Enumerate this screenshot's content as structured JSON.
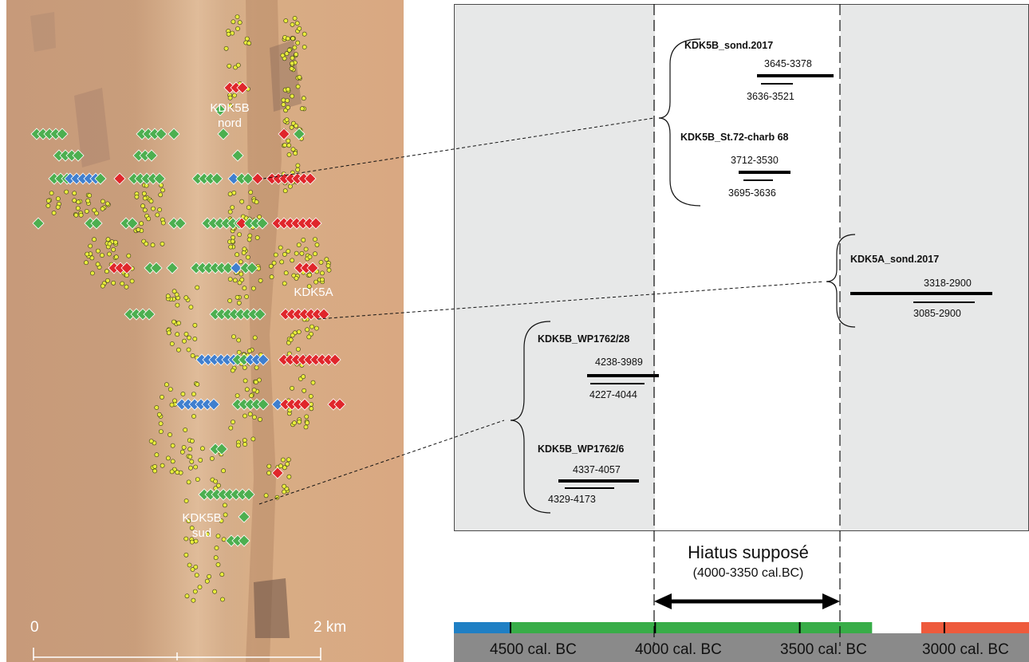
{
  "map": {
    "labels": {
      "north_line1": "KDK5B",
      "north_line2": "nord",
      "kdk5a": "KDK5A",
      "south_line1": "KDK5B",
      "south_line2": "sud"
    },
    "scale": {
      "start": "0",
      "end": "2 km"
    },
    "colors": {
      "green": "#4caf50",
      "blue": "#3f7fcf",
      "red": "#e0262b",
      "yellow": "#e8ec3c"
    }
  },
  "samples": [
    {
      "id": "kdk5b-sond-2017",
      "name": "KDK5B_sond.2017",
      "range_95": "3645-3378",
      "range_68": "3636-3521"
    },
    {
      "id": "kdk5b-st72",
      "name": "KDK5B_St.72-charb 68",
      "range_95": "3712-3530",
      "range_68": "3695-3636"
    },
    {
      "id": "kdk5a-sond-2017",
      "name": "KDK5A_sond.2017",
      "range_95": "3318-2900",
      "range_68": "3085-2900"
    },
    {
      "id": "kdk5b-wp1762-28",
      "name": "KDK5B_WP1762/28",
      "range_95": "4238-3989",
      "range_68": "4227-4044"
    },
    {
      "id": "kdk5b-wp1762-6",
      "name": "KDK5B_WP1762/6",
      "range_95": "4337-4057",
      "range_68": "4329-4173"
    }
  ],
  "hiatus": {
    "title": "Hiatus supposé",
    "subtitle": "(4000-3350 cal.BC)",
    "start": 4000,
    "end": 3350
  },
  "timeline": {
    "ticks": [
      {
        "value": 4500,
        "label": "4500  cal. BC"
      },
      {
        "value": 4000,
        "label": "4000  cal. BC"
      },
      {
        "value": 3500,
        "label": "3500  cal. BC"
      },
      {
        "value": 3000,
        "label": "3000  cal. BC"
      }
    ],
    "segments": [
      {
        "from": 4700,
        "to": 4500,
        "color": "#1f7fc4"
      },
      {
        "from": 4500,
        "to": 3250,
        "color": "#38ad48"
      },
      {
        "from": 3080,
        "to": 2700,
        "color": "#ee5a3c"
      }
    ],
    "base_color": "#8a8a8a"
  }
}
